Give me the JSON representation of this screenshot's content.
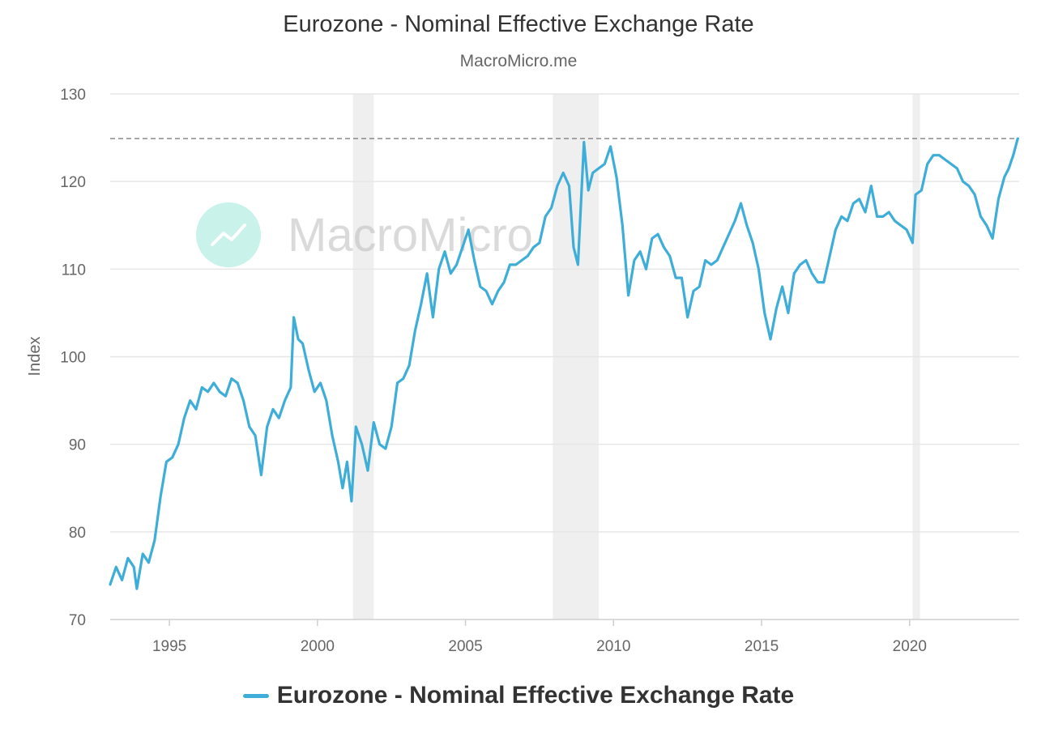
{
  "header": {
    "title": "Eurozone - Nominal Effective Exchange Rate",
    "subtitle": "MacroMicro.me"
  },
  "watermark": {
    "text": "MacroMicro",
    "icon": "macromicro-logo-icon"
  },
  "legend": {
    "label": "Eurozone - Nominal Effective Exchange Rate"
  },
  "colors": {
    "series": "#3eaed8",
    "grid": "#e6e6e6",
    "band": "#efefef",
    "reference_line": "#8a8a8a",
    "watermark_icon": "#c8f2ea"
  },
  "chart_data": {
    "type": "line",
    "title": "Eurozone - Nominal Effective Exchange Rate",
    "subtitle": "MacroMicro.me",
    "xlabel": "",
    "ylabel": "Index",
    "xlim": [
      1993.0,
      2023.7
    ],
    "ylim": [
      70,
      130
    ],
    "yticks": [
      70,
      80,
      90,
      100,
      110,
      120,
      130
    ],
    "xticks": [
      1995,
      2000,
      2005,
      2010,
      2015,
      2020
    ],
    "grid": true,
    "legend_position": "bottom-center",
    "reference_line": {
      "y": 124.9,
      "style": "dashed"
    },
    "shaded_bands": [
      {
        "start": 2001.2,
        "end": 2001.9
      },
      {
        "start": 2007.95,
        "end": 2009.5
      },
      {
        "start": 2020.1,
        "end": 2020.35
      }
    ],
    "series": [
      {
        "name": "Eurozone - Nominal Effective Exchange Rate",
        "points": [
          [
            1993.0,
            74
          ],
          [
            1993.2,
            76
          ],
          [
            1993.4,
            74.5
          ],
          [
            1993.6,
            77
          ],
          [
            1993.8,
            76
          ],
          [
            1993.9,
            73.5
          ],
          [
            1994.1,
            77.5
          ],
          [
            1994.3,
            76.5
          ],
          [
            1994.5,
            79
          ],
          [
            1994.7,
            84
          ],
          [
            1994.9,
            88
          ],
          [
            1995.1,
            88.5
          ],
          [
            1995.3,
            90
          ],
          [
            1995.5,
            93
          ],
          [
            1995.7,
            95
          ],
          [
            1995.9,
            94
          ],
          [
            1996.1,
            96.5
          ],
          [
            1996.3,
            96
          ],
          [
            1996.5,
            97
          ],
          [
            1996.7,
            96
          ],
          [
            1996.9,
            95.5
          ],
          [
            1997.1,
            97.5
          ],
          [
            1997.3,
            97
          ],
          [
            1997.5,
            95
          ],
          [
            1997.7,
            92
          ],
          [
            1997.9,
            91
          ],
          [
            1998.1,
            86.5
          ],
          [
            1998.3,
            92
          ],
          [
            1998.5,
            94
          ],
          [
            1998.7,
            93
          ],
          [
            1998.9,
            95
          ],
          [
            1999.1,
            96.5
          ],
          [
            1999.2,
            104.5
          ],
          [
            1999.35,
            102
          ],
          [
            1999.5,
            101.5
          ],
          [
            1999.7,
            98.5
          ],
          [
            1999.9,
            96
          ],
          [
            2000.1,
            97
          ],
          [
            2000.3,
            95
          ],
          [
            2000.5,
            91
          ],
          [
            2000.7,
            88
          ],
          [
            2000.85,
            85
          ],
          [
            2001.0,
            88
          ],
          [
            2001.15,
            83.5
          ],
          [
            2001.3,
            92
          ],
          [
            2001.5,
            90
          ],
          [
            2001.7,
            87
          ],
          [
            2001.9,
            92.5
          ],
          [
            2002.1,
            90
          ],
          [
            2002.3,
            89.5
          ],
          [
            2002.5,
            92
          ],
          [
            2002.7,
            97
          ],
          [
            2002.9,
            97.5
          ],
          [
            2003.1,
            99
          ],
          [
            2003.3,
            103
          ],
          [
            2003.5,
            106
          ],
          [
            2003.7,
            109.5
          ],
          [
            2003.9,
            104.5
          ],
          [
            2004.1,
            110
          ],
          [
            2004.3,
            112
          ],
          [
            2004.5,
            109.5
          ],
          [
            2004.7,
            110.5
          ],
          [
            2004.9,
            112.5
          ],
          [
            2005.1,
            114.5
          ],
          [
            2005.3,
            111
          ],
          [
            2005.5,
            108
          ],
          [
            2005.7,
            107.5
          ],
          [
            2005.9,
            106
          ],
          [
            2006.1,
            107.5
          ],
          [
            2006.3,
            108.5
          ],
          [
            2006.5,
            110.5
          ],
          [
            2006.7,
            110.5
          ],
          [
            2006.9,
            111
          ],
          [
            2007.1,
            111.5
          ],
          [
            2007.3,
            112.5
          ],
          [
            2007.5,
            113
          ],
          [
            2007.7,
            116
          ],
          [
            2007.9,
            117
          ],
          [
            2008.1,
            119.5
          ],
          [
            2008.3,
            121
          ],
          [
            2008.5,
            119.5
          ],
          [
            2008.65,
            112.5
          ],
          [
            2008.8,
            110.5
          ],
          [
            2009.0,
            124.5
          ],
          [
            2009.15,
            119
          ],
          [
            2009.3,
            121
          ],
          [
            2009.5,
            121.5
          ],
          [
            2009.7,
            122
          ],
          [
            2009.9,
            124
          ],
          [
            2010.1,
            120.5
          ],
          [
            2010.3,
            115
          ],
          [
            2010.5,
            107
          ],
          [
            2010.7,
            111
          ],
          [
            2010.9,
            112
          ],
          [
            2011.1,
            110
          ],
          [
            2011.3,
            113.5
          ],
          [
            2011.5,
            114
          ],
          [
            2011.7,
            112.5
          ],
          [
            2011.9,
            111.5
          ],
          [
            2012.1,
            109
          ],
          [
            2012.3,
            109
          ],
          [
            2012.5,
            104.5
          ],
          [
            2012.7,
            107.5
          ],
          [
            2012.9,
            108
          ],
          [
            2013.1,
            111
          ],
          [
            2013.3,
            110.5
          ],
          [
            2013.5,
            111
          ],
          [
            2013.7,
            112.5
          ],
          [
            2013.9,
            114
          ],
          [
            2014.1,
            115.5
          ],
          [
            2014.3,
            117.5
          ],
          [
            2014.5,
            115
          ],
          [
            2014.7,
            113
          ],
          [
            2014.9,
            110
          ],
          [
            2015.1,
            105
          ],
          [
            2015.3,
            102
          ],
          [
            2015.5,
            105.5
          ],
          [
            2015.7,
            108
          ],
          [
            2015.9,
            105
          ],
          [
            2016.1,
            109.5
          ],
          [
            2016.3,
            110.5
          ],
          [
            2016.5,
            111
          ],
          [
            2016.7,
            109.5
          ],
          [
            2016.9,
            108.5
          ],
          [
            2017.1,
            108.5
          ],
          [
            2017.3,
            111.5
          ],
          [
            2017.5,
            114.5
          ],
          [
            2017.7,
            116
          ],
          [
            2017.9,
            115.5
          ],
          [
            2018.1,
            117.5
          ],
          [
            2018.3,
            118
          ],
          [
            2018.5,
            116.5
          ],
          [
            2018.7,
            119.5
          ],
          [
            2018.9,
            116
          ],
          [
            2019.1,
            116
          ],
          [
            2019.3,
            116.5
          ],
          [
            2019.5,
            115.5
          ],
          [
            2019.7,
            115
          ],
          [
            2019.9,
            114.5
          ],
          [
            2020.1,
            113
          ],
          [
            2020.2,
            118.5
          ],
          [
            2020.4,
            119
          ],
          [
            2020.6,
            122
          ],
          [
            2020.8,
            123
          ],
          [
            2021.0,
            123
          ],
          [
            2021.2,
            122.5
          ],
          [
            2021.4,
            122
          ],
          [
            2021.6,
            121.5
          ],
          [
            2021.8,
            120
          ],
          [
            2022.0,
            119.5
          ],
          [
            2022.2,
            118.5
          ],
          [
            2022.4,
            116
          ],
          [
            2022.6,
            115
          ],
          [
            2022.8,
            113.5
          ],
          [
            2023.0,
            118
          ],
          [
            2023.2,
            120.5
          ],
          [
            2023.35,
            121.5
          ],
          [
            2023.5,
            123
          ],
          [
            2023.65,
            124.9
          ]
        ]
      }
    ]
  }
}
